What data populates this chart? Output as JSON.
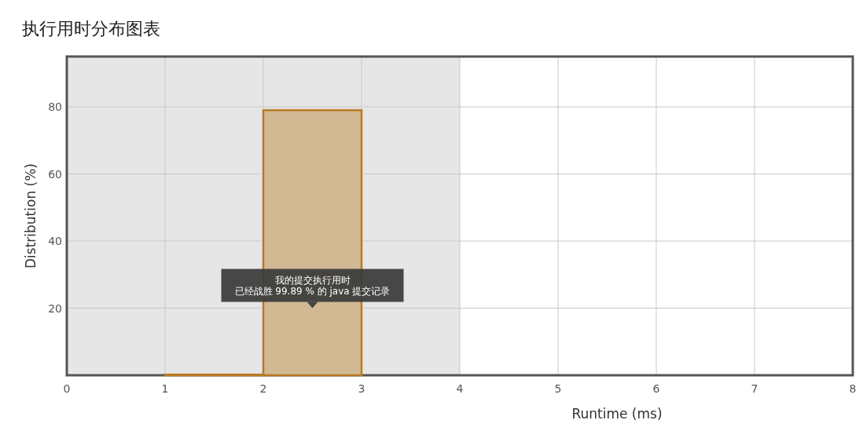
{
  "chart_data": {
    "type": "histogram",
    "title": "执行用时分布图表",
    "xlabel": "Runtime (ms)",
    "ylabel": "Distribution (%)",
    "bins": [
      0,
      1,
      2,
      3,
      4,
      5,
      6,
      7,
      8
    ],
    "values": [
      0,
      0.2,
      79,
      0,
      0,
      0,
      0,
      0
    ],
    "color": "#d2b994",
    "xlim": [
      0,
      8
    ],
    "xticks": [
      0,
      1,
      2,
      3,
      4,
      5,
      6,
      7,
      8
    ],
    "ylim": [
      0,
      95
    ],
    "yticks": [
      20,
      40,
      60,
      80
    ],
    "grid": true,
    "bands": [
      {
        "axis": "x",
        "from": 0,
        "to": 4,
        "color": "#e6e6e6"
      }
    ],
    "annotations": [
      "我的提交执行用时",
      "已经战胜 99.89 % 的 java 提交记录"
    ]
  }
}
